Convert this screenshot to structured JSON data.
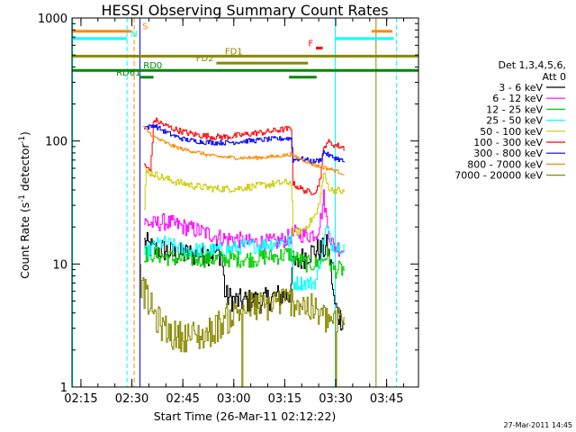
{
  "chart_data": {
    "type": "line",
    "title": "HESSI Observing Summary Count Rates",
    "xlabel": "Start Time (26-Mar-11 02:12:22)",
    "ylabel_main": "Count Rate (s",
    "ylabel_sup1": "-1",
    "ylabel_mid": " detector",
    "ylabel_sup2": "-1",
    "ylabel_end": ")",
    "timestamp": "27-Mar-2011 14:45",
    "x_unit": "minutes since 02:12:22",
    "xlim": [
      0,
      102
    ],
    "ylim": [
      1,
      1000
    ],
    "yscale": "log",
    "x_ticks": [
      {
        "t": 2.63,
        "label": "02:15"
      },
      {
        "t": 17.63,
        "label": "02:30"
      },
      {
        "t": 32.63,
        "label": "02:45"
      },
      {
        "t": 47.63,
        "label": "03:00"
      },
      {
        "t": 62.63,
        "label": "03:15"
      },
      {
        "t": 77.63,
        "label": "03:30"
      },
      {
        "t": 92.63,
        "label": "03:45"
      }
    ],
    "y_ticks": [
      {
        "v": 1,
        "label": "1"
      },
      {
        "v": 10,
        "label": "10"
      },
      {
        "v": 100,
        "label": "100"
      },
      {
        "v": 1000,
        "label": "1000"
      }
    ],
    "legend": {
      "header_line1": "Det 1,3,4,5,6,",
      "header_line2": "Att 0",
      "placement": "right"
    },
    "series": [
      {
        "name": "3 - 6 keV",
        "color": "#000000",
        "noise": 0.1,
        "points": [
          [
            21.2,
            15
          ],
          [
            24,
            13
          ],
          [
            27,
            13
          ],
          [
            30,
            12
          ],
          [
            33,
            12
          ],
          [
            36,
            12
          ],
          [
            39,
            12
          ],
          [
            42,
            12.5
          ],
          [
            44,
            12
          ],
          [
            45,
            5.5
          ],
          [
            48,
            5
          ],
          [
            52,
            5
          ],
          [
            56,
            5
          ],
          [
            60,
            5.5
          ],
          [
            64,
            5.5
          ],
          [
            64.5,
            9
          ],
          [
            66,
            10
          ],
          [
            69,
            12
          ],
          [
            72,
            13
          ],
          [
            74,
            13
          ],
          [
            75,
            14
          ],
          [
            76,
            10
          ],
          [
            77,
            5
          ],
          [
            78,
            4
          ],
          [
            80,
            3.3
          ]
        ]
      },
      {
        "name": "6 - 12 keV",
        "color": "#ff00ff",
        "noise": 0.07,
        "points": [
          [
            21.2,
            22
          ],
          [
            24,
            21
          ],
          [
            27,
            22
          ],
          [
            30,
            21
          ],
          [
            33,
            20
          ],
          [
            36,
            19
          ],
          [
            39,
            18
          ],
          [
            42,
            17
          ],
          [
            45,
            16
          ],
          [
            48,
            16
          ],
          [
            51,
            15
          ],
          [
            54,
            15
          ],
          [
            57,
            15
          ],
          [
            60,
            15
          ],
          [
            63,
            16
          ],
          [
            64.5,
            17
          ],
          [
            66,
            18
          ],
          [
            69,
            17
          ],
          [
            72,
            18
          ],
          [
            73,
            22
          ],
          [
            74,
            35
          ],
          [
            75,
            22
          ],
          [
            76,
            16
          ],
          [
            77,
            14
          ],
          [
            80,
            13
          ]
        ]
      },
      {
        "name": "12 - 25 keV",
        "color": "#00cc00",
        "noise": 0.07,
        "points": [
          [
            21.2,
            12
          ],
          [
            24,
            12
          ],
          [
            27,
            11.5
          ],
          [
            30,
            11
          ],
          [
            33,
            11
          ],
          [
            36,
            11
          ],
          [
            39,
            11
          ],
          [
            42,
            11
          ],
          [
            45,
            11
          ],
          [
            48,
            11
          ],
          [
            51,
            11
          ],
          [
            54,
            11
          ],
          [
            57,
            11.5
          ],
          [
            60,
            11.5
          ],
          [
            63,
            12
          ],
          [
            64.5,
            12
          ],
          [
            66,
            11
          ],
          [
            69,
            10
          ],
          [
            72,
            10
          ],
          [
            74,
            11
          ],
          [
            75,
            12
          ],
          [
            76,
            10
          ],
          [
            77,
            9
          ],
          [
            80,
            9
          ]
        ]
      },
      {
        "name": "25 - 50 keV",
        "color": "#00ffff",
        "noise": 0.06,
        "points": [
          [
            21.2,
            12
          ],
          [
            24,
            14
          ],
          [
            27,
            15
          ],
          [
            30,
            14
          ],
          [
            33,
            13
          ],
          [
            36,
            13
          ],
          [
            39,
            13
          ],
          [
            42,
            13
          ],
          [
            45,
            13
          ],
          [
            48,
            13.5
          ],
          [
            51,
            14
          ],
          [
            54,
            14
          ],
          [
            57,
            14.5
          ],
          [
            60,
            15
          ],
          [
            63,
            15.5
          ],
          [
            64.5,
            15
          ],
          [
            65,
            7
          ],
          [
            66,
            7
          ],
          [
            69,
            7
          ],
          [
            71,
            7
          ],
          [
            72,
            7.5
          ],
          [
            74,
            16
          ],
          [
            75,
            20
          ],
          [
            76,
            15
          ],
          [
            77,
            14
          ],
          [
            80,
            14
          ]
        ]
      },
      {
        "name": "50 - 100 keV",
        "color": "#cccc00",
        "noise": 0.03,
        "points": [
          [
            21.2,
            28
          ],
          [
            21.7,
            56
          ],
          [
            24,
            54
          ],
          [
            27,
            50
          ],
          [
            30,
            47
          ],
          [
            33,
            45
          ],
          [
            36,
            43
          ],
          [
            39,
            42
          ],
          [
            42,
            41
          ],
          [
            45,
            41
          ],
          [
            48,
            41
          ],
          [
            51,
            42
          ],
          [
            54,
            43
          ],
          [
            57,
            44
          ],
          [
            60,
            45
          ],
          [
            63,
            46
          ],
          [
            64.5,
            46
          ],
          [
            65,
            18
          ],
          [
            66,
            18
          ],
          [
            68,
            19
          ],
          [
            70,
            22
          ],
          [
            72,
            26
          ],
          [
            73,
            35
          ],
          [
            74,
            55
          ],
          [
            75,
            45
          ],
          [
            76,
            40
          ],
          [
            78,
            40
          ],
          [
            80,
            38
          ]
        ]
      },
      {
        "name": "100 - 300 keV",
        "color": "#ff0000",
        "noise": 0.025,
        "points": [
          [
            21.2,
            65
          ],
          [
            22,
            60
          ],
          [
            23,
            57
          ],
          [
            24,
            150
          ],
          [
            27,
            135
          ],
          [
            30,
            125
          ],
          [
            33,
            118
          ],
          [
            36,
            113
          ],
          [
            39,
            110
          ],
          [
            42,
            108
          ],
          [
            45,
            108
          ],
          [
            48,
            110
          ],
          [
            51,
            113
          ],
          [
            54,
            116
          ],
          [
            57,
            118
          ],
          [
            60,
            122
          ],
          [
            63,
            125
          ],
          [
            64.5,
            125
          ],
          [
            65,
            45
          ],
          [
            66,
            43
          ],
          [
            68,
            40
          ],
          [
            70,
            38
          ],
          [
            72,
            40
          ],
          [
            73,
            50
          ],
          [
            74,
            85
          ],
          [
            75,
            100
          ],
          [
            76,
            95
          ],
          [
            78,
            92
          ],
          [
            80,
            88
          ]
        ]
      },
      {
        "name": "300 - 800 keV",
        "color": "#0000ff",
        "noise": 0.02,
        "points": [
          [
            21.2,
            130
          ],
          [
            23,
            130
          ],
          [
            24,
            135
          ],
          [
            27,
            120
          ],
          [
            30,
            110
          ],
          [
            33,
            103
          ],
          [
            36,
            100
          ],
          [
            39,
            98
          ],
          [
            42,
            97
          ],
          [
            45,
            97
          ],
          [
            48,
            98
          ],
          [
            51,
            100
          ],
          [
            54,
            101
          ],
          [
            57,
            103
          ],
          [
            60,
            104
          ],
          [
            63,
            105
          ],
          [
            64.5,
            105
          ],
          [
            65,
            70
          ],
          [
            67,
            72
          ],
          [
            69,
            70
          ],
          [
            71,
            68
          ],
          [
            73,
            70
          ],
          [
            74,
            82
          ],
          [
            75,
            78
          ],
          [
            76,
            75
          ],
          [
            78,
            72
          ],
          [
            80,
            68
          ]
        ]
      },
      {
        "name": "800 - 7000 keV",
        "color": "#ff8800",
        "noise": 0.015,
        "points": [
          [
            20.8,
            130
          ],
          [
            23,
            115
          ],
          [
            24,
            108
          ],
          [
            27,
            98
          ],
          [
            30,
            90
          ],
          [
            33,
            85
          ],
          [
            36,
            82
          ],
          [
            39,
            78
          ],
          [
            42,
            75
          ],
          [
            45,
            74
          ],
          [
            48,
            73
          ],
          [
            51,
            73
          ],
          [
            54,
            73
          ],
          [
            57,
            74
          ],
          [
            60,
            75
          ],
          [
            63,
            77
          ],
          [
            64.5,
            78
          ],
          [
            65,
            76
          ],
          [
            67,
            72
          ],
          [
            69,
            68
          ],
          [
            71,
            64
          ],
          [
            73,
            62
          ],
          [
            75,
            60
          ],
          [
            77,
            58
          ],
          [
            80,
            54
          ]
        ]
      },
      {
        "name": "7000 - 20000 keV",
        "color": "#888800",
        "noise": 0.13,
        "dropouts": true,
        "points": [
          [
            20,
            7.5
          ],
          [
            21,
            6
          ],
          [
            23,
            4.5
          ],
          [
            25,
            3.5
          ],
          [
            27,
            3
          ],
          [
            30,
            2.6
          ],
          [
            33,
            2.6
          ],
          [
            36,
            2.6
          ],
          [
            39,
            2.6
          ],
          [
            42,
            3
          ],
          [
            45,
            3.5
          ],
          [
            48,
            4
          ],
          [
            51,
            4.5
          ],
          [
            54,
            4.5
          ],
          [
            57,
            4.5
          ],
          [
            60,
            5
          ],
          [
            63,
            5
          ],
          [
            66,
            5
          ],
          [
            69,
            4.5
          ],
          [
            72,
            4
          ],
          [
            75,
            3.5
          ],
          [
            78,
            3.5
          ],
          [
            80,
            3.5
          ]
        ]
      }
    ],
    "vlines": [
      {
        "t": 0.2,
        "color": "#00ffff",
        "style": "solid"
      },
      {
        "t": 16.2,
        "color": "#00ffff",
        "style": "dashed"
      },
      {
        "t": 18.3,
        "color": "#ff8800",
        "style": "dashed"
      },
      {
        "t": 20.0,
        "color": "#0000ff",
        "style": "solid"
      },
      {
        "t": 77.5,
        "color": "#00ffff",
        "style": "solid"
      },
      {
        "t": 89.5,
        "color": "#888800",
        "style": "solid"
      },
      {
        "t": 95.5,
        "color": "#00ffff",
        "style": "dashed"
      }
    ],
    "bars": [
      {
        "label": "S",
        "color": "#ff8800",
        "y": 780,
        "segments": [
          [
            0,
            17.4
          ],
          [
            88.2,
            94.3
          ]
        ],
        "label_t": 20.7
      },
      {
        "label": "N",
        "color": "#00ffff",
        "y": 680,
        "segments": [
          [
            0,
            16.2
          ],
          [
            77.5,
            94.7
          ]
        ],
        "label_t": 17.3
      },
      {
        "label": "F",
        "color": "#ff0000",
        "y": 570,
        "segments": [
          [
            71.8,
            73.8
          ]
        ],
        "label_t": 69.5
      },
      {
        "label": "FD1",
        "color": "#888800",
        "y": 490,
        "segments": [
          [
            0,
            102
          ]
        ],
        "label_t": 45.0
      },
      {
        "label": "FD2",
        "color": "#888800",
        "y": 430,
        "segments": [
          [
            42.5,
            69.5
          ]
        ],
        "label_t": 36.5
      },
      {
        "label": "RD0",
        "color": "#008800",
        "y": 375,
        "segments": [
          [
            0,
            102
          ]
        ],
        "label_t": 21.0
      },
      {
        "label": "RD61",
        "color": "#008800",
        "y": 330,
        "segments": [
          [
            20.2,
            24.0
          ],
          [
            63.9,
            72.0
          ]
        ],
        "label_t": 13.0
      }
    ]
  }
}
